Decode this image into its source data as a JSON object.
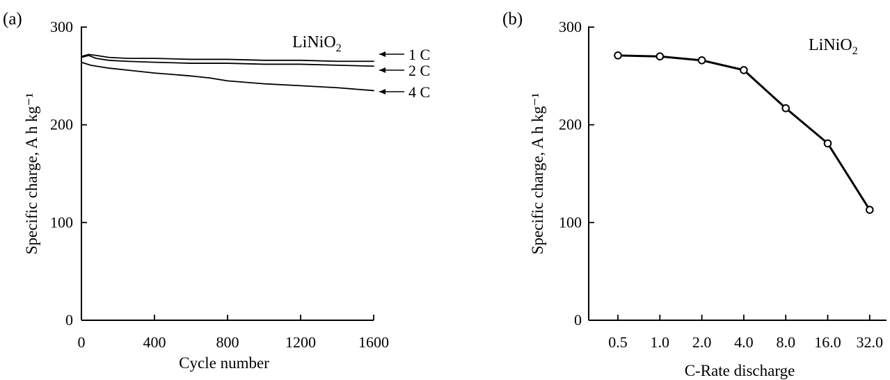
{
  "chart_data": [
    {
      "panel_label": "(a)",
      "type": "line",
      "xlabel": "Cycle number",
      "ylabel": "Specific charge, A h kg⁻¹",
      "xlim": [
        0,
        1600
      ],
      "ylim": [
        0,
        300
      ],
      "xticks": [
        0,
        400,
        800,
        1200,
        1600
      ],
      "yticks": [
        0,
        100,
        200,
        300
      ],
      "annotation": {
        "text": "LiNiO",
        "subscript": "2"
      },
      "series": [
        {
          "name": "1 C",
          "x": [
            0,
            40,
            80,
            150,
            250,
            400,
            600,
            800,
            1000,
            1200,
            1400,
            1600
          ],
          "y": [
            270,
            272,
            271,
            269,
            268,
            268,
            267,
            267,
            266,
            266,
            265,
            265
          ]
        },
        {
          "name": "2 C",
          "x": [
            0,
            40,
            80,
            150,
            250,
            400,
            600,
            800,
            1000,
            1200,
            1400,
            1600
          ],
          "y": [
            269,
            271,
            268,
            266,
            265,
            264,
            263,
            263,
            262,
            262,
            261,
            260
          ]
        },
        {
          "name": "4 C",
          "x": [
            0,
            50,
            150,
            250,
            400,
            600,
            700,
            800,
            1000,
            1200,
            1400,
            1600
          ],
          "y": [
            264,
            261,
            258,
            256,
            253,
            250,
            248,
            245,
            242,
            240,
            238,
            235
          ]
        }
      ]
    },
    {
      "panel_label": "(b)",
      "type": "line",
      "xlabel": "C-Rate discharge",
      "ylabel": "Specific charge, A h kg⁻¹",
      "ylim": [
        0,
        300
      ],
      "yticks": [
        0,
        100,
        200,
        300
      ],
      "annotation": {
        "text": "LiNiO",
        "subscript": "2"
      },
      "categories": [
        "0.5",
        "1.0",
        "2.0",
        "4.0",
        "8.0",
        "16.0",
        "32.0"
      ],
      "series": [
        {
          "values": [
            271,
            270,
            266,
            256,
            217,
            181,
            113
          ]
        }
      ]
    }
  ]
}
